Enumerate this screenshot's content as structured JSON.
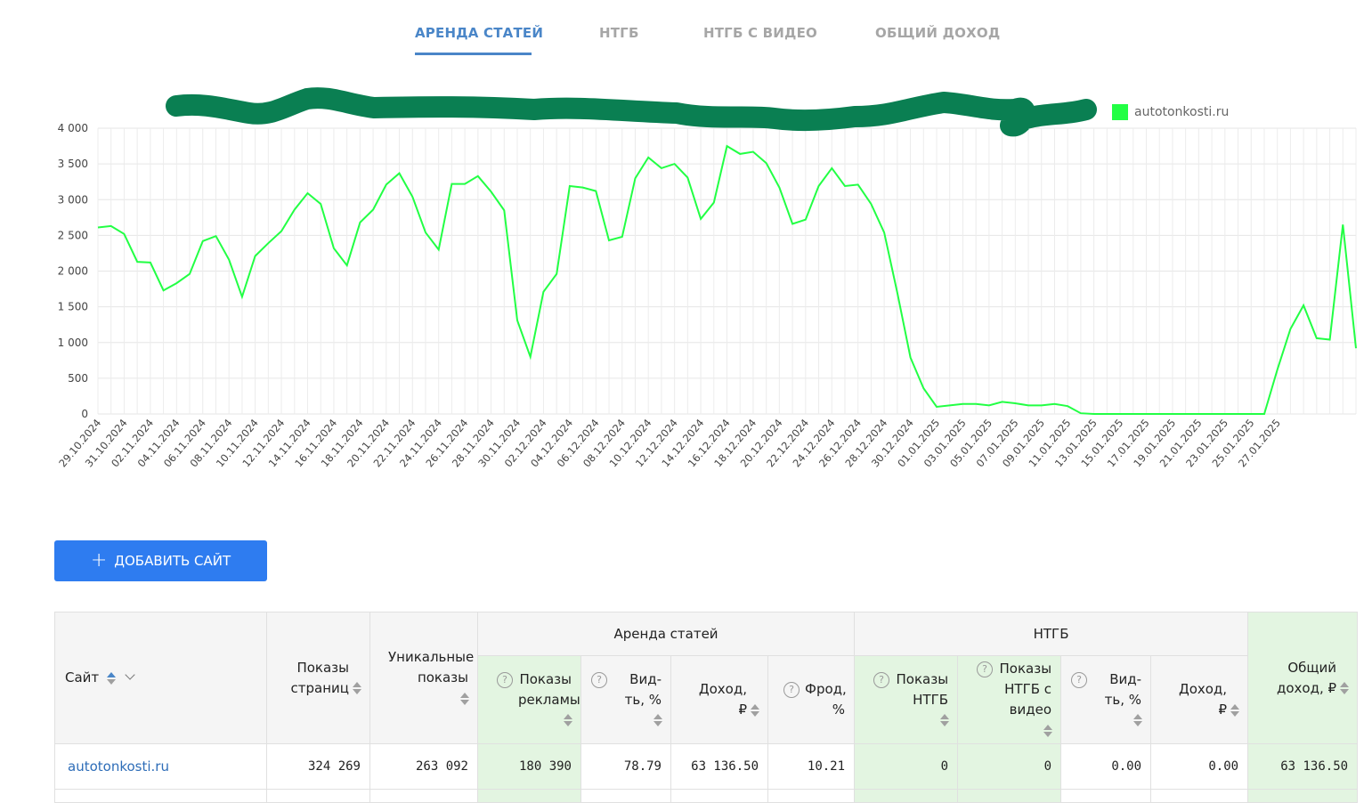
{
  "tabs": [
    {
      "label": "АРЕНДА СТАТЕЙ",
      "active": true
    },
    {
      "label": "НТГБ",
      "active": false
    },
    {
      "label": "НТГБ С ВИДЕО",
      "active": false
    },
    {
      "label": "ОБЩИЙ ДОХОД",
      "active": false
    }
  ],
  "colors": {
    "accent": "#4a86c8",
    "series": "#22ff44",
    "button": "#2e7cf0",
    "scribble": "#0a7f52",
    "green_cell": "#e3f5e1"
  },
  "chart_data": {
    "type": "line",
    "legend": {
      "placement": "top-right",
      "visible_entry": "autotonkosti.ru"
    },
    "ylim": [
      0,
      4000
    ],
    "y_ticks": [
      "4 000",
      "3 500",
      "3 000",
      "2 500",
      "2 000",
      "1 500",
      "1 000",
      "500",
      "0"
    ],
    "x_labels": [
      "29.10.2024",
      "31.10.2024",
      "02.11.2024",
      "04.11.2024",
      "06.11.2024",
      "08.11.2024",
      "10.11.2024",
      "12.11.2024",
      "14.11.2024",
      "16.11.2024",
      "18.11.2024",
      "20.11.2024",
      "22.11.2024",
      "24.11.2024",
      "26.11.2024",
      "28.11.2024",
      "30.11.2024",
      "02.12.2024",
      "04.12.2024",
      "06.12.2024",
      "08.12.2024",
      "10.12.2024",
      "12.12.2024",
      "14.12.2024",
      "16.12.2024",
      "18.12.2024",
      "20.12.2024",
      "22.12.2024",
      "24.12.2024",
      "26.12.2024",
      "28.12.2024",
      "30.12.2024",
      "01.01.2025",
      "03.01.2025",
      "05.01.2025",
      "07.01.2025",
      "09.01.2025",
      "11.01.2025",
      "13.01.2025",
      "15.01.2025",
      "17.01.2025",
      "19.01.2025",
      "21.01.2025",
      "23.01.2025",
      "25.01.2025",
      "27.01.2025"
    ],
    "grid": true,
    "series": [
      {
        "name": "autotonkosti.ru",
        "values": [
          2610,
          2630,
          2520,
          2130,
          2120,
          1730,
          1830,
          1960,
          2420,
          2490,
          2160,
          1640,
          2210,
          2390,
          2560,
          2860,
          3090,
          2940,
          2320,
          2080,
          2680,
          2860,
          3210,
          3370,
          3040,
          2540,
          2300,
          3220,
          3220,
          3330,
          3110,
          2850,
          1310,
          800,
          1710,
          1960,
          3190,
          3170,
          3120,
          2430,
          2480,
          3300,
          3590,
          3440,
          3500,
          3310,
          2730,
          2960,
          3750,
          3640,
          3670,
          3510,
          3170,
          2660,
          2720,
          3190,
          3440,
          3190,
          3210,
          2940,
          2540,
          1700,
          790,
          360,
          100,
          120,
          140,
          140,
          120,
          170,
          150,
          120,
          120,
          140,
          110,
          10,
          0,
          0,
          0,
          0,
          0,
          0,
          0,
          0,
          0,
          0,
          0,
          0,
          0,
          0,
          620,
          1190,
          1520,
          1060,
          1040,
          2650,
          920
        ]
      }
    ]
  },
  "button": {
    "plus": "+",
    "label": "ДОБАВИТЬ САЙТ"
  },
  "table": {
    "headers": {
      "site": "Сайт",
      "page_views": "Показы страниц",
      "unique_views": "Уникальные показы",
      "group_rent": "Аренда статей",
      "group_ntgb": "НТГБ",
      "ad_views": "Показы рекламы",
      "visibility": "Вид-ть, %",
      "income": "Доход, ₽",
      "fraud": "Фрод, %",
      "ntgb_views": "Показы НТГБ",
      "ntgb_video_views": "Показы НТГБ с видео",
      "ntgb_visibility": "Вид-ть, %",
      "ntgb_income": "Доход, ₽",
      "total_income": "Общий доход, ₽"
    },
    "help_mark": "?",
    "rows": [
      {
        "site": "autotonkosti.ru",
        "page_views": "324 269",
        "unique_views": "263 092",
        "ad_views": "180 390",
        "visibility": "78.79",
        "income": "63 136.50",
        "fraud": "10.21",
        "ntgb_views": "0",
        "ntgb_video_views": "0",
        "ntgb_visibility": "0.00",
        "ntgb_income": "0.00",
        "total_income": "63 136.50"
      }
    ]
  }
}
